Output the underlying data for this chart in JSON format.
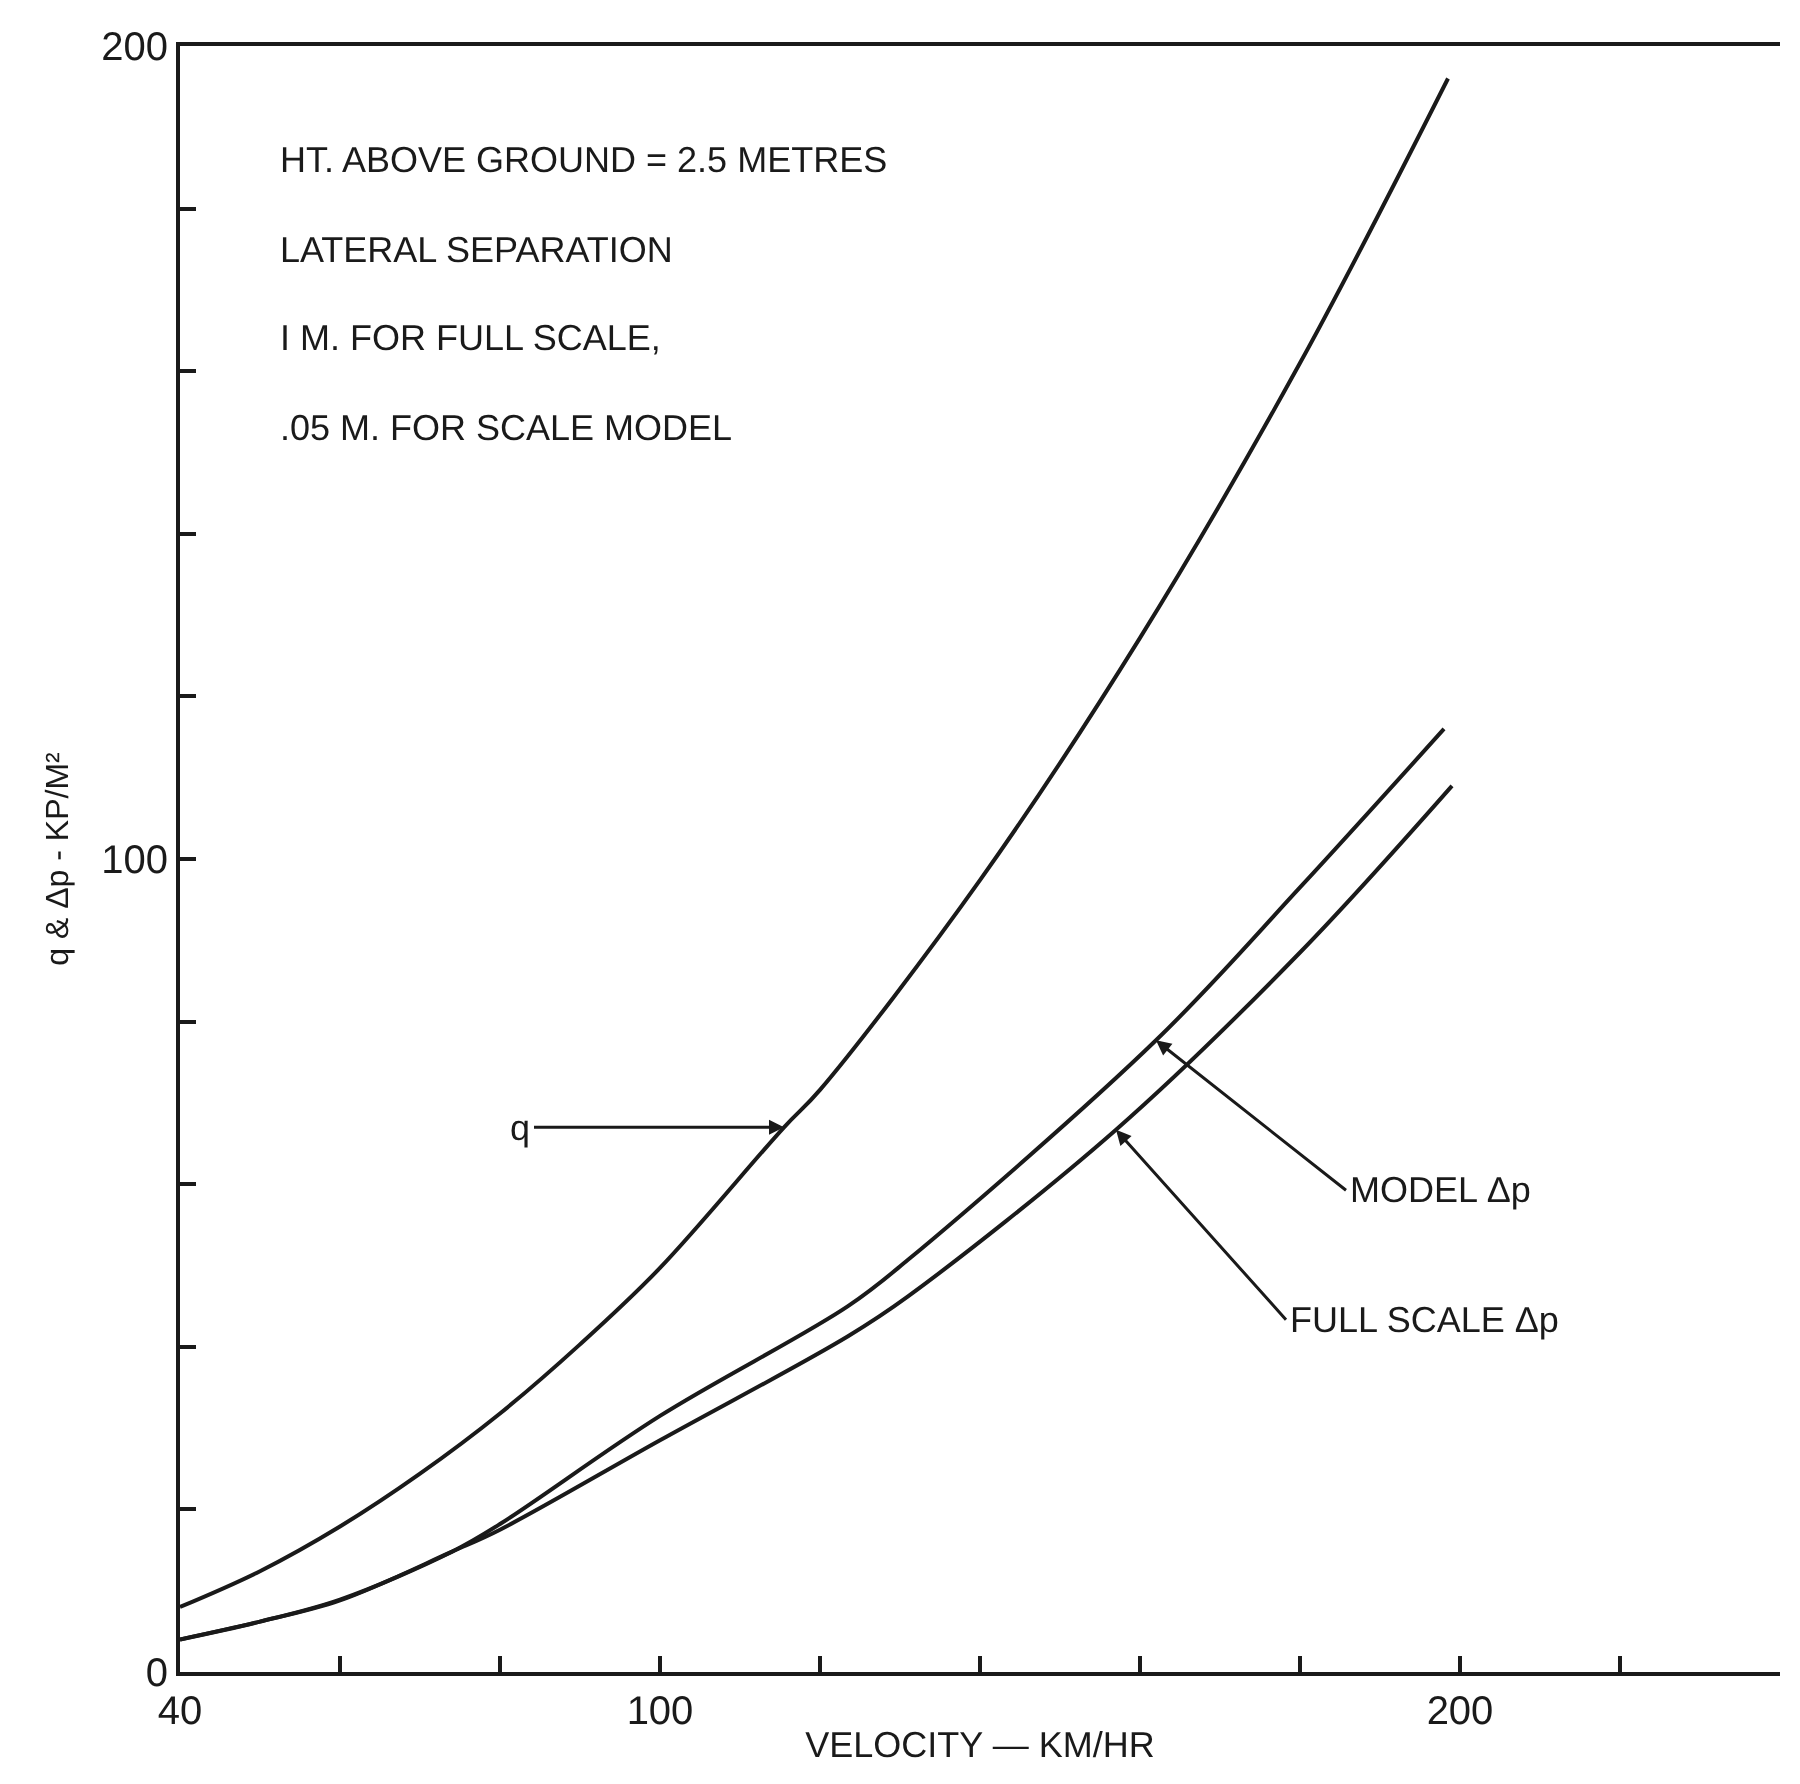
{
  "chart_data": {
    "type": "line",
    "xlabel": "VELOCITY — KM/HR",
    "ylabel": "q & Δp - KP/M²",
    "xlim": [
      40,
      240
    ],
    "xticks": [
      40,
      {
        "value": 60,
        "label": null
      },
      {
        "value": 80,
        "label": null
      },
      100,
      {
        "value": 120,
        "label": null
      },
      {
        "value": 140,
        "label": null
      },
      {
        "value": 160,
        "label": null
      },
      {
        "value": 180,
        "label": null
      },
      200,
      {
        "value": 220,
        "label": null
      }
    ],
    "ylim": [
      0,
      200
    ],
    "yticks": [
      0,
      {
        "value": 20,
        "label": null
      },
      {
        "value": 40,
        "label": null
      },
      {
        "value": 60,
        "label": null
      },
      {
        "value": 80,
        "label": null
      },
      100,
      {
        "value": 120,
        "label": null
      },
      {
        "value": 140,
        "label": null
      },
      {
        "value": 160,
        "label": null
      },
      {
        "value": 180,
        "label": null
      },
      200
    ],
    "marker": "none",
    "line_style": "solid",
    "series": [
      {
        "color": "#1a1a1a",
        "x": [
          40,
          50,
          60,
          70,
          80,
          90,
          100,
          115.5,
          120,
          140,
          160,
          180,
          198.5
        ],
        "values": [
          8,
          12.4,
          17.9,
          24.4,
          31.8,
          40.3,
          49.7,
          67,
          71.6,
          97.4,
          127.2,
          161,
          196
        ]
      },
      {
        "color": "#1a1a1a",
        "x": [
          40,
          50,
          60,
          74,
          80,
          100,
          123.5,
          131,
          162,
          180,
          198
        ],
        "values": [
          4,
          6.2,
          8.9,
          14.8,
          18.2,
          31.5,
          45,
          50.7,
          77.7,
          96.5,
          116
        ]
      },
      {
        "color": "#1a1a1a",
        "x": [
          40,
          50,
          60,
          74,
          80,
          100,
          123.5,
          131,
          157,
          180,
          199
        ],
        "values": [
          4,
          6.2,
          8.8,
          14.8,
          17.5,
          28.5,
          41.3,
          46.2,
          66.7,
          88.5,
          109
        ]
      }
    ],
    "annotations": [
      "HT. ABOVE GROUND = 2.5 METRES",
      "LATERAL SEPARATION",
      "I M. FOR FULL SCALE,",
      ".05 M. FOR SCALE MODEL",
      {
        "text": "q",
        "x": 115.5,
        "y": 67
      },
      {
        "text": "MODEL Δp",
        "x": 162,
        "y": 77.7
      },
      {
        "text": "FULL SCALE Δp",
        "x": 157,
        "y": 66.7
      }
    ]
  }
}
